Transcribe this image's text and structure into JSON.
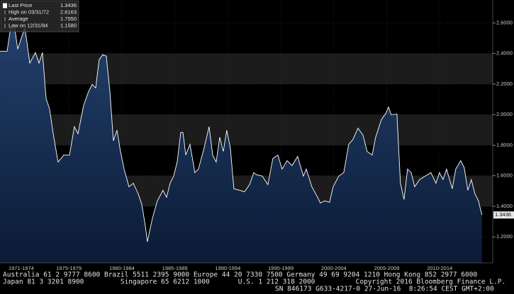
{
  "chart_data": {
    "type": "area",
    "legend": [
      {
        "name": "Last Price",
        "value": "1.3436"
      },
      {
        "name": "High on 03/31/72",
        "value": "2.6163"
      },
      {
        "name": "Average",
        "value": "1.7550"
      },
      {
        "name": "Low on 12/31/84",
        "value": "1.1580"
      }
    ],
    "x": [
      1971.0,
      1971.67,
      1972.0,
      1972.34,
      1972.67,
      1973.0,
      1973.34,
      1973.54,
      1973.81,
      1974.34,
      1974.68,
      1975.01,
      1975.35,
      1975.68,
      1976.02,
      1976.48,
      1977.02,
      1977.56,
      1978.02,
      1978.36,
      1978.89,
      1979.36,
      1979.7,
      1980.03,
      1980.36,
      1980.7,
      1981.03,
      1981.37,
      1981.7,
      1982.04,
      1982.37,
      1982.71,
      1983.17,
      1983.58,
      1984.04,
      1984.38,
      1984.71,
      1984.91,
      1985.38,
      1985.85,
      1986.38,
      1986.72,
      1987.05,
      1987.39,
      1987.72,
      1988.06,
      1988.26,
      1988.53,
      1988.93,
      1989.39,
      1989.73,
      1990.26,
      1990.73,
      1991.07,
      1991.4,
      1991.74,
      1992.07,
      1992.4,
      1992.74,
      1993.07,
      1993.61,
      1994.08,
      1994.55,
      1994.95,
      1995.21,
      1995.75,
      1996.28,
      1996.75,
      1997.22,
      1997.62,
      1998.09,
      1998.56,
      1999.09,
      1999.63,
      1999.9,
      2000.43,
      2000.97,
      2001.23,
      2001.64,
      2002.1,
      2002.44,
      2002.97,
      2003.44,
      2003.91,
      2004.31,
      2004.78,
      2005.25,
      2005.65,
      2006.12,
      2006.45,
      2006.99,
      2007.45,
      2007.66,
      2007.92,
      2008.46,
      2008.79,
      2009.13,
      2009.46,
      2009.8,
      2010.13,
      2010.6,
      2011.13,
      2011.67,
      2012.14,
      2012.47,
      2012.81,
      2013.14,
      2013.68,
      2014.01,
      2014.48,
      2014.81,
      2015.15,
      2015.48,
      2015.82,
      2016.15,
      2016.48
    ],
    "series": [
      {
        "name": "Last Price",
        "color": "#ffffff",
        "values": [
          2.415,
          2.415,
          2.568,
          2.591,
          2.429,
          2.498,
          2.568,
          2.475,
          2.337,
          2.406,
          2.337,
          2.406,
          2.106,
          2.036,
          1.875,
          1.69,
          1.736,
          1.736,
          1.921,
          1.875,
          2.06,
          2.152,
          2.198,
          2.175,
          2.36,
          2.392,
          2.383,
          2.152,
          1.829,
          1.898,
          1.759,
          1.644,
          1.528,
          1.551,
          1.482,
          1.413,
          1.274,
          1.168,
          1.321,
          1.436,
          1.505,
          1.459,
          1.551,
          1.598,
          1.69,
          1.884,
          1.884,
          1.736,
          1.806,
          1.621,
          1.644,
          1.782,
          1.921,
          1.736,
          1.69,
          1.852,
          1.759,
          1.898,
          1.782,
          1.515,
          1.505,
          1.496,
          1.542,
          1.621,
          1.607,
          1.598,
          1.542,
          1.713,
          1.736,
          1.644,
          1.699,
          1.667,
          1.727,
          1.598,
          1.644,
          1.528,
          1.459,
          1.422,
          1.436,
          1.427,
          1.528,
          1.598,
          1.621,
          1.806,
          1.838,
          1.912,
          1.866,
          1.759,
          1.736,
          1.852,
          1.967,
          2.013,
          2.05,
          1.999,
          2.004,
          1.551,
          1.445,
          1.644,
          1.621,
          1.528,
          1.575,
          1.598,
          1.621,
          1.551,
          1.621,
          1.575,
          1.644,
          1.515,
          1.644,
          1.699,
          1.653,
          1.505,
          1.575,
          1.482,
          1.436,
          1.3436
        ]
      }
    ],
    "xlim": [
      1971,
      2017.5
    ],
    "ylim": [
      1.03,
      2.75
    ],
    "yticks": [
      {
        "value": 1.2,
        "label": "1.2000"
      },
      {
        "value": 1.4,
        "label": "1.4000"
      },
      {
        "value": 1.6,
        "label": "1.6000"
      },
      {
        "value": 1.8,
        "label": "1.8000"
      },
      {
        "value": 2.0,
        "label": "2.0000"
      },
      {
        "value": 2.2,
        "label": "2.2000"
      },
      {
        "value": 2.4,
        "label": "2.4000"
      },
      {
        "value": 2.6,
        "label": "2.6000"
      }
    ],
    "xticks": [
      {
        "value": 1973,
        "label": "1971-1974"
      },
      {
        "value": 1977.5,
        "label": "1975-1979"
      },
      {
        "value": 1982.5,
        "label": "1980-1984"
      },
      {
        "value": 1987.5,
        "label": "1985-1989"
      },
      {
        "value": 1992.5,
        "label": "1990-1994"
      },
      {
        "value": 1997.5,
        "label": "1995-1999"
      },
      {
        "value": 2002.5,
        "label": "2000-2004"
      },
      {
        "value": 2007.5,
        "label": "2005-2009"
      },
      {
        "value": 2012.5,
        "label": "2010-2014"
      }
    ],
    "grid": true,
    "footer": [
      "Australia 61 2 9777 8600 Brazil 5511 2395 9000 Europe 44 20 7330 7500 Germany 49 69 9204 1210 Hong Kong 852 2977 6000",
      "Japan 81 3 3201 8900         Singapore 65 6212 1000       U.S. 1 212 318 2000          Copyright 2016 Bloomberg Finance L.P.",
      "SN 846173 G633-4217-0 27-Jun-16  8:26:54 CEST GMT+2:00"
    ]
  }
}
